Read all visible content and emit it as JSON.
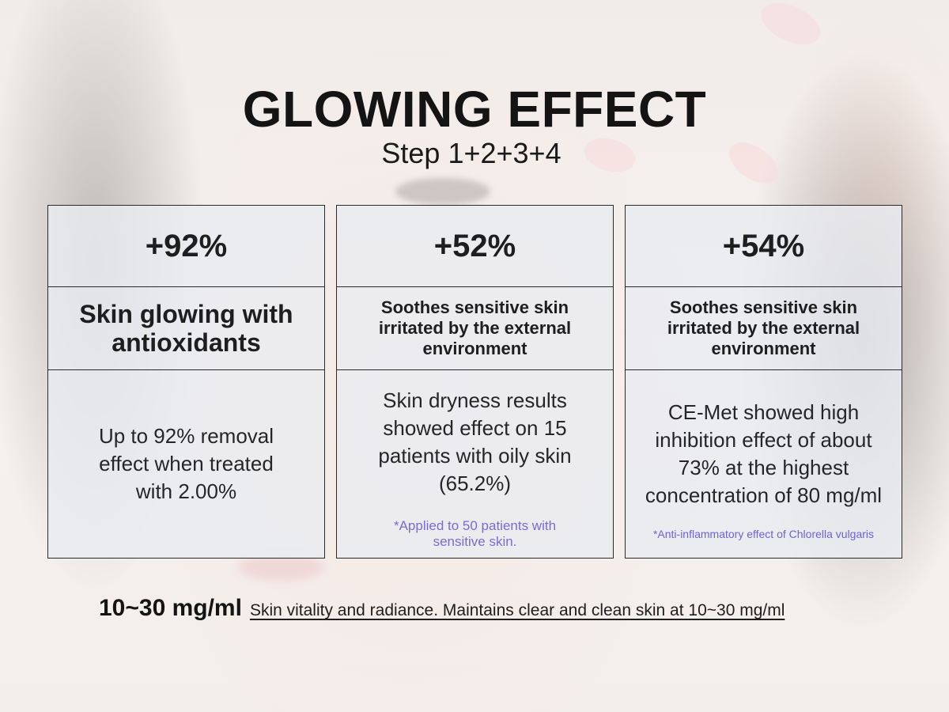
{
  "header": {
    "title": "GLOWING EFFECT",
    "subtitle": "Step 1+2+3+4"
  },
  "cards": [
    {
      "stat": "+92%",
      "headline": "Skin glowing with antioxidants",
      "body": "Up to 92% removal effect when treated with 2.00%",
      "note": ""
    },
    {
      "stat": "+52%",
      "headline": "Soothes sensitive skin irritated by the external environment",
      "body": "Skin dryness results showed effect on 15 patients with oily skin (65.2%)",
      "note": "*Applied to 50 patients with sensitive skin."
    },
    {
      "stat": "+54%",
      "headline": "Soothes sensitive skin irritated by the external environment",
      "body": "CE-Met showed high inhibition effect of about 73% at the highest concentration of 80 mg/ml",
      "note": "*Anti-inflammatory effect of Chlorella vulgaris"
    }
  ],
  "footer": {
    "dose": "10~30 mg/ml",
    "description": "Skin vitality and radiance. Maintains clear and clean skin at 10~30 mg/ml"
  },
  "colors": {
    "card_fill": "#e9ecf0",
    "card_border": "#2a2a2a",
    "note_text": "#7b6ad6"
  }
}
